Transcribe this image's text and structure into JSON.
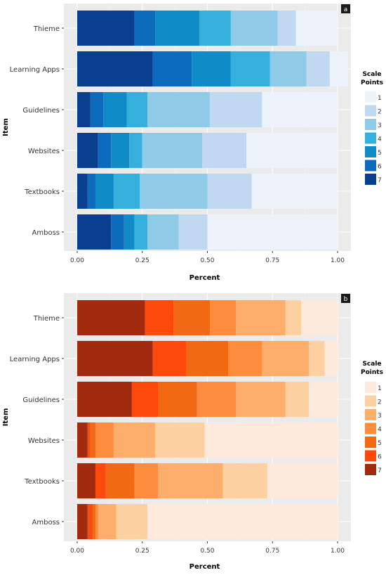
{
  "chart_data": [
    {
      "type": "bar",
      "orientation": "horizontal",
      "stacked": true,
      "panel_label": "a",
      "xlabel": "Percent",
      "ylabel": "Item",
      "xlim": [
        0,
        1
      ],
      "x_ticks": [
        "0.00",
        "0.25",
        "0.50",
        "0.75",
        "1.00"
      ],
      "categories": [
        "Thieme",
        "Learning Apps",
        "Guidelines",
        "Websites",
        "Textbooks",
        "Amboss"
      ],
      "legend": {
        "title": [
          "Scale",
          "Points"
        ],
        "position": "right",
        "labels": [
          "1",
          "2",
          "3",
          "4",
          "5",
          "6",
          "7"
        ]
      },
      "colors": [
        "#eef3fb",
        "#c0d9f0",
        "#8fcae6",
        "#35b0dc",
        "#0f8cc8",
        "#0d6bbd",
        "#0a3e8e"
      ],
      "series": [
        {
          "name": "7",
          "values": [
            0.22,
            0.29,
            0.05,
            0.08,
            0.04,
            0.13
          ]
        },
        {
          "name": "6",
          "values": [
            0.08,
            0.15,
            0.05,
            0.05,
            0.03,
            0.05
          ]
        },
        {
          "name": "5",
          "values": [
            0.17,
            0.15,
            0.09,
            0.07,
            0.07,
            0.04
          ]
        },
        {
          "name": "4",
          "values": [
            0.12,
            0.15,
            0.08,
            0.05,
            0.1,
            0.05
          ]
        },
        {
          "name": "3",
          "values": [
            0.18,
            0.14,
            0.24,
            0.23,
            0.26,
            0.12
          ]
        },
        {
          "name": "2",
          "values": [
            0.07,
            0.09,
            0.2,
            0.17,
            0.17,
            0.11
          ]
        },
        {
          "name": "1",
          "values": [
            0.16,
            0.07,
            0.29,
            0.35,
            0.33,
            0.5
          ]
        }
      ]
    },
    {
      "type": "bar",
      "orientation": "horizontal",
      "stacked": true,
      "panel_label": "b",
      "xlabel": "Percent",
      "ylabel": "Item",
      "xlim": [
        0,
        1
      ],
      "x_ticks": [
        "0.00",
        "0.25",
        "0.50",
        "0.75",
        "1.00"
      ],
      "categories": [
        "Thieme",
        "Learning Apps",
        "Guidelines",
        "Websites",
        "Textbooks",
        "Amboss"
      ],
      "legend": {
        "title": [
          "Scale",
          "Points"
        ],
        "position": "right",
        "labels": [
          "1",
          "2",
          "3",
          "4",
          "5",
          "6",
          "7"
        ]
      },
      "colors": [
        "#feeadc",
        "#fdd0a2",
        "#fdae6b",
        "#fd8d3c",
        "#f16913",
        "#fd4a0c",
        "#a12a0f"
      ],
      "series": [
        {
          "name": "7",
          "values": [
            0.26,
            0.29,
            0.21,
            0.04,
            0.07,
            0.04
          ]
        },
        {
          "name": "6",
          "values": [
            0.11,
            0.13,
            0.1,
            0.01,
            0.04,
            0.02
          ]
        },
        {
          "name": "5",
          "values": [
            0.14,
            0.16,
            0.15,
            0.02,
            0.11,
            0.01
          ]
        },
        {
          "name": "4",
          "values": [
            0.1,
            0.13,
            0.15,
            0.07,
            0.09,
            0.01
          ]
        },
        {
          "name": "3",
          "values": [
            0.19,
            0.18,
            0.19,
            0.16,
            0.25,
            0.07
          ]
        },
        {
          "name": "2",
          "values": [
            0.06,
            0.06,
            0.09,
            0.19,
            0.17,
            0.12
          ]
        },
        {
          "name": "1",
          "values": [
            0.14,
            0.05,
            0.11,
            0.51,
            0.27,
            0.73
          ]
        }
      ]
    }
  ]
}
